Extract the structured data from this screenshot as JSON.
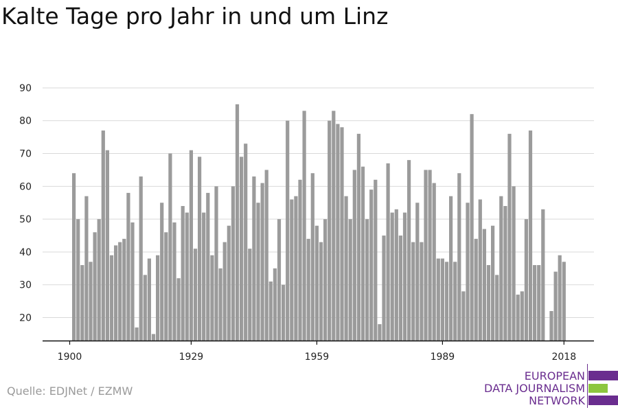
{
  "header": {
    "title": "Kalte Tage pro Jahr in und um Linz"
  },
  "footer": {
    "source": "Quelle: EDJNet / EZMW"
  },
  "logo": {
    "line1": "EUROPEAN",
    "line2": "DATA JOURNALISM",
    "line3": "NETWORK",
    "purple": "#6a2d8f",
    "green": "#8dc63f"
  },
  "chart_data": {
    "type": "bar",
    "title": "Kalte Tage pro Jahr in und um Linz",
    "xlabel": "",
    "ylabel": "",
    "x_start": 1900,
    "x_end": 2018,
    "xticks": [
      1900,
      1929,
      1959,
      1989,
      2018
    ],
    "yticks": [
      20,
      30,
      40,
      50,
      60,
      70,
      80,
      90
    ],
    "ylim": [
      13,
      92
    ],
    "grid": true,
    "bar_color": "#9b9b9b",
    "values": [
      12,
      64,
      50,
      36,
      57,
      37,
      46,
      50,
      77,
      71,
      39,
      42,
      43,
      44,
      58,
      49,
      17,
      63,
      33,
      38,
      15,
      39,
      55,
      46,
      70,
      49,
      32,
      54,
      52,
      71,
      41,
      69,
      52,
      58,
      39,
      60,
      35,
      43,
      48,
      60,
      85,
      69,
      73,
      41,
      63,
      55,
      61,
      65,
      31,
      35,
      50,
      30,
      80,
      56,
      57,
      62,
      83,
      44,
      64,
      48,
      43,
      50,
      80,
      83,
      79,
      78,
      57,
      50,
      65,
      76,
      66,
      50,
      59,
      62,
      18,
      45,
      67,
      52,
      53,
      45,
      52,
      68,
      43,
      55,
      43,
      65,
      65,
      61,
      38,
      38,
      37,
      57,
      37,
      64,
      28,
      55,
      82,
      44,
      56,
      47,
      36,
      48,
      33,
      57,
      54,
      76,
      60,
      27,
      28,
      50,
      77,
      36,
      36,
      53,
      13,
      22,
      34,
      39,
      37
    ]
  }
}
